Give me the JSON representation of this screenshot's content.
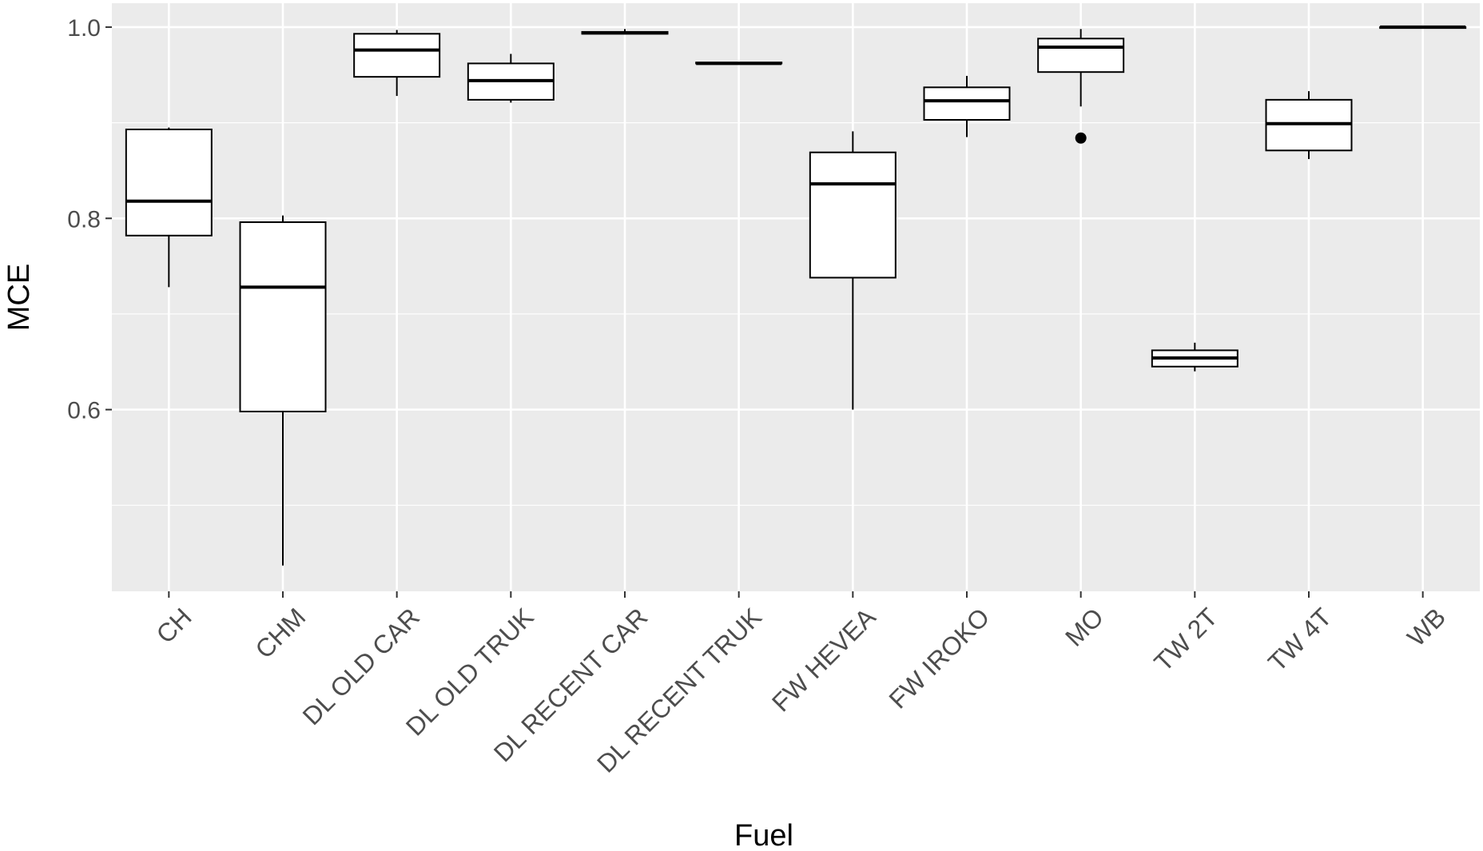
{
  "chart_data": {
    "type": "boxplot",
    "xlabel": "Fuel",
    "ylabel": "MCE",
    "ylim": [
      0.41,
      1.025
    ],
    "yticks": [
      0.6,
      0.8,
      1.0
    ],
    "ytick_labels": [
      "0.6",
      "0.8",
      "1.0"
    ],
    "grid": true,
    "categories": [
      "CH",
      "CHM",
      "DL OLD CAR",
      "DL OLD TRUK",
      "DL RECENT CAR",
      "DL RECENT TRUK",
      "FW HEVEA",
      "FW IROKO",
      "MO",
      "TW 2T",
      "TW 4T",
      "WB"
    ],
    "boxes": [
      {
        "category": "CH",
        "whisker_low": 0.728,
        "q1": 0.782,
        "median": 0.818,
        "q3": 0.893,
        "whisker_high": 0.895,
        "outliers": []
      },
      {
        "category": "CHM",
        "whisker_low": 0.437,
        "q1": 0.598,
        "median": 0.728,
        "q3": 0.796,
        "whisker_high": 0.803,
        "outliers": []
      },
      {
        "category": "DL OLD CAR",
        "whisker_low": 0.928,
        "q1": 0.948,
        "median": 0.976,
        "q3": 0.993,
        "whisker_high": 0.997,
        "outliers": []
      },
      {
        "category": "DL OLD TRUK",
        "whisker_low": 0.921,
        "q1": 0.924,
        "median": 0.944,
        "q3": 0.962,
        "whisker_high": 0.972,
        "outliers": []
      },
      {
        "category": "DL RECENT CAR",
        "whisker_low": 0.993,
        "q1": 0.993,
        "median": 0.994,
        "q3": 0.995,
        "whisker_high": 0.998,
        "outliers": []
      },
      {
        "category": "DL RECENT TRUK",
        "whisker_low": 0.962,
        "q1": 0.962,
        "median": 0.962,
        "q3": 0.963,
        "whisker_high": 0.963,
        "outliers": []
      },
      {
        "category": "FW HEVEA",
        "whisker_low": 0.6,
        "q1": 0.738,
        "median": 0.836,
        "q3": 0.869,
        "whisker_high": 0.891,
        "outliers": []
      },
      {
        "category": "FW IROKO",
        "whisker_low": 0.885,
        "q1": 0.903,
        "median": 0.923,
        "q3": 0.937,
        "whisker_high": 0.949,
        "outliers": []
      },
      {
        "category": "MO",
        "whisker_low": 0.917,
        "q1": 0.953,
        "median": 0.979,
        "q3": 0.988,
        "whisker_high": 0.998,
        "outliers": [
          0.884
        ]
      },
      {
        "category": "TW 2T",
        "whisker_low": 0.64,
        "q1": 0.645,
        "median": 0.654,
        "q3": 0.662,
        "whisker_high": 0.67,
        "outliers": []
      },
      {
        "category": "TW 4T",
        "whisker_low": 0.862,
        "q1": 0.871,
        "median": 0.899,
        "q3": 0.924,
        "whisker_high": 0.933,
        "outliers": []
      },
      {
        "category": "WB",
        "whisker_low": 0.999,
        "q1": 0.999,
        "median": 1.0,
        "q3": 1.0,
        "whisker_high": 1.0,
        "outliers": []
      }
    ]
  },
  "colors": {
    "panel_background": "#ebebeb",
    "grid": "#ffffff",
    "box_fill": "#ffffff",
    "box_stroke": "#000000",
    "tick_text": "#4d4d4d"
  }
}
